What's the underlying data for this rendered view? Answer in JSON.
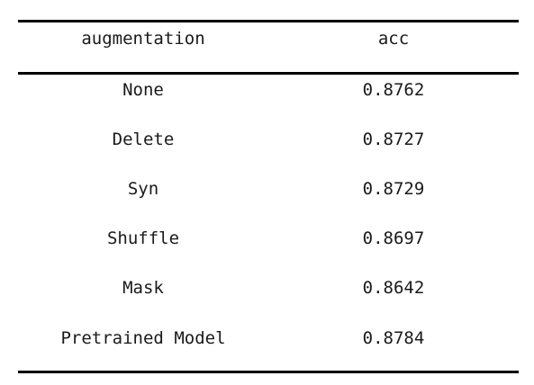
{
  "table": {
    "headers": [
      "augmentation",
      "acc"
    ],
    "rows": [
      [
        "None",
        "0.8762"
      ],
      [
        "Delete",
        "0.8727"
      ],
      [
        "Syn",
        "0.8729"
      ],
      [
        "Shuffle",
        "0.8697"
      ],
      [
        "Mask",
        "0.8642"
      ],
      [
        "Pretrained Model",
        "0.8784"
      ]
    ]
  }
}
